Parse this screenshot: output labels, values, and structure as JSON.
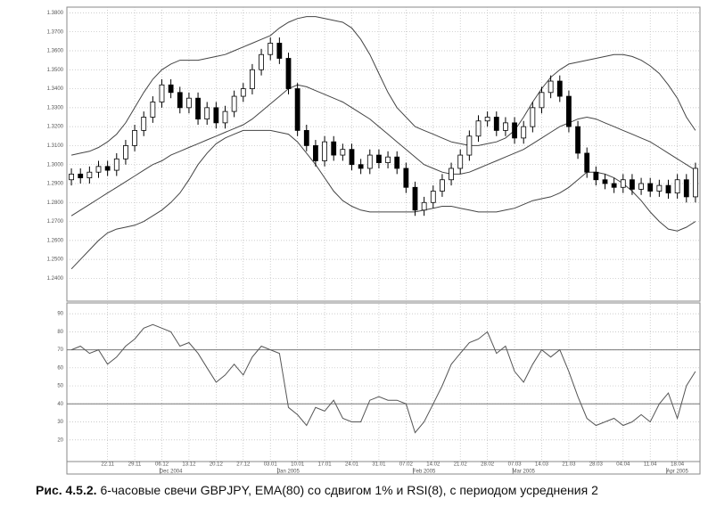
{
  "chart_data": [
    {
      "type": "candlestick",
      "categories": [
        null,
        null,
        null,
        null,
        "22.11",
        null,
        null,
        "29.11",
        null,
        null,
        "06.12",
        null,
        null,
        "13.12",
        null,
        null,
        "20.12",
        null,
        null,
        "27.12",
        null,
        null,
        "03.01",
        null,
        null,
        "10.01",
        null,
        null,
        "17.01",
        null,
        null,
        "24.01",
        null,
        null,
        "31.01",
        null,
        null,
        "07.02",
        null,
        null,
        "14.02",
        null,
        null,
        "21.02",
        null,
        null,
        "28.02",
        null,
        null,
        "07.03",
        null,
        null,
        "14.03",
        null,
        null,
        "21.03",
        null,
        null,
        "28.03",
        null,
        null,
        "04.04",
        null,
        null,
        "11.04",
        null,
        null,
        "18.04",
        null,
        null
      ],
      "x2ticks": [
        {
          "value": 11,
          "label": "Dec 2004"
        },
        {
          "value": 24,
          "label": "Jan 2005"
        },
        {
          "value": 39,
          "label": "Feb 2005"
        },
        {
          "value": 50,
          "label": "Mar 2005"
        },
        {
          "value": 67,
          "label": "Apr 2005"
        }
      ],
      "open": [
        1.292,
        1.295,
        1.293,
        1.296,
        1.299,
        1.297,
        1.303,
        1.31,
        1.318,
        1.325,
        1.333,
        1.342,
        1.338,
        1.33,
        1.335,
        1.324,
        1.33,
        1.322,
        1.328,
        1.336,
        1.34,
        1.35,
        1.358,
        1.364,
        1.356,
        1.34,
        1.318,
        1.31,
        1.302,
        1.312,
        1.305,
        1.308,
        1.3,
        1.298,
        1.305,
        1.301,
        1.304,
        1.298,
        1.288,
        1.276,
        1.28,
        1.286,
        1.292,
        1.298,
        1.305,
        1.315,
        1.323,
        1.325,
        1.318,
        1.322,
        1.314,
        1.32,
        1.33,
        1.338,
        1.344,
        1.336,
        1.32,
        1.306,
        1.296,
        1.292,
        1.29,
        1.288,
        1.292,
        1.287,
        1.29,
        1.286,
        1.289,
        1.285,
        1.292,
        1.283
      ],
      "high": [
        1.298,
        1.298,
        1.299,
        1.302,
        1.302,
        1.306,
        1.313,
        1.321,
        1.328,
        1.336,
        1.345,
        1.345,
        1.341,
        1.338,
        1.338,
        1.333,
        1.333,
        1.331,
        1.339,
        1.343,
        1.353,
        1.361,
        1.367,
        1.367,
        1.359,
        1.343,
        1.321,
        1.313,
        1.315,
        1.315,
        1.311,
        1.311,
        1.303,
        1.308,
        1.308,
        1.307,
        1.307,
        1.301,
        1.291,
        1.283,
        1.289,
        1.295,
        1.301,
        1.308,
        1.318,
        1.326,
        1.328,
        1.328,
        1.325,
        1.325,
        1.323,
        1.333,
        1.341,
        1.347,
        1.347,
        1.339,
        1.323,
        1.309,
        1.299,
        1.295,
        1.293,
        1.295,
        1.295,
        1.293,
        1.293,
        1.292,
        1.292,
        1.295,
        1.295,
        1.301
      ],
      "low": [
        1.289,
        1.29,
        1.29,
        1.293,
        1.294,
        1.294,
        1.3,
        1.307,
        1.315,
        1.322,
        1.33,
        1.335,
        1.327,
        1.327,
        1.321,
        1.321,
        1.319,
        1.319,
        1.325,
        1.333,
        1.337,
        1.347,
        1.355,
        1.353,
        1.337,
        1.315,
        1.307,
        1.299,
        1.299,
        1.302,
        1.302,
        1.297,
        1.295,
        1.295,
        1.298,
        1.298,
        1.295,
        1.285,
        1.273,
        1.273,
        1.277,
        1.283,
        1.289,
        1.295,
        1.302,
        1.312,
        1.32,
        1.315,
        1.315,
        1.311,
        1.311,
        1.317,
        1.327,
        1.335,
        1.333,
        1.317,
        1.303,
        1.293,
        1.289,
        1.287,
        1.285,
        1.285,
        1.284,
        1.284,
        1.283,
        1.283,
        1.282,
        1.282,
        1.28,
        1.28
      ],
      "close": [
        1.295,
        1.293,
        1.296,
        1.299,
        1.297,
        1.303,
        1.31,
        1.318,
        1.325,
        1.333,
        1.342,
        1.338,
        1.33,
        1.335,
        1.324,
        1.33,
        1.322,
        1.328,
        1.336,
        1.34,
        1.35,
        1.358,
        1.364,
        1.356,
        1.34,
        1.318,
        1.31,
        1.302,
        1.312,
        1.305,
        1.308,
        1.3,
        1.298,
        1.305,
        1.301,
        1.304,
        1.298,
        1.288,
        1.276,
        1.28,
        1.286,
        1.292,
        1.298,
        1.305,
        1.315,
        1.323,
        1.325,
        1.318,
        1.322,
        1.314,
        1.32,
        1.33,
        1.338,
        1.344,
        1.336,
        1.32,
        1.306,
        1.296,
        1.292,
        1.29,
        1.288,
        1.292,
        1.287,
        1.29,
        1.286,
        1.289,
        1.285,
        1.292,
        1.283,
        1.298
      ],
      "series": [
        {
          "color": "#444444",
          "values": [
            1.305,
            1.306,
            1.307,
            1.309,
            1.312,
            1.316,
            1.322,
            1.33,
            1.338,
            1.345,
            1.35,
            1.353,
            1.355,
            1.355,
            1.355,
            1.356,
            1.357,
            1.358,
            1.36,
            1.362,
            1.364,
            1.366,
            1.368,
            1.372,
            1.375,
            1.377,
            1.378,
            1.378,
            1.377,
            1.376,
            1.375,
            1.372,
            1.366,
            1.358,
            1.348,
            1.338,
            1.33,
            1.325,
            1.32,
            1.318,
            1.316,
            1.314,
            1.312,
            1.311,
            1.31,
            1.31,
            1.311,
            1.312,
            1.314,
            1.318,
            1.325,
            1.333,
            1.34,
            1.346,
            1.35,
            1.353,
            1.354,
            1.355,
            1.356,
            1.357,
            1.358,
            1.358,
            1.357,
            1.355,
            1.352,
            1.348,
            1.342,
            1.335,
            1.325,
            1.318
          ]
        },
        {
          "color": "#444444",
          "values": [
            1.273,
            1.276,
            1.279,
            1.282,
            1.285,
            1.288,
            1.291,
            1.294,
            1.297,
            1.3,
            1.302,
            1.305,
            1.307,
            1.309,
            1.311,
            1.313,
            1.315,
            1.317,
            1.319,
            1.321,
            1.324,
            1.328,
            1.332,
            1.336,
            1.34,
            1.342,
            1.341,
            1.339,
            1.337,
            1.335,
            1.333,
            1.33,
            1.327,
            1.324,
            1.32,
            1.316,
            1.312,
            1.308,
            1.304,
            1.3,
            1.298,
            1.296,
            1.295,
            1.295,
            1.296,
            1.298,
            1.3,
            1.302,
            1.304,
            1.306,
            1.308,
            1.311,
            1.314,
            1.317,
            1.32,
            1.322,
            1.324,
            1.325,
            1.324,
            1.322,
            1.32,
            1.318,
            1.316,
            1.314,
            1.312,
            1.309,
            1.306,
            1.303,
            1.3,
            1.297
          ]
        },
        {
          "color": "#444444",
          "values": [
            1.245,
            1.25,
            1.255,
            1.26,
            1.264,
            1.266,
            1.267,
            1.268,
            1.27,
            1.273,
            1.276,
            1.28,
            1.285,
            1.292,
            1.3,
            1.306,
            1.311,
            1.314,
            1.316,
            1.318,
            1.318,
            1.318,
            1.318,
            1.317,
            1.316,
            1.312,
            1.306,
            1.3,
            1.293,
            1.286,
            1.281,
            1.278,
            1.276,
            1.275,
            1.275,
            1.275,
            1.275,
            1.275,
            1.275,
            1.276,
            1.277,
            1.278,
            1.278,
            1.277,
            1.276,
            1.275,
            1.275,
            1.275,
            1.276,
            1.277,
            1.279,
            1.281,
            1.282,
            1.283,
            1.285,
            1.288,
            1.292,
            1.296,
            1.296,
            1.295,
            1.293,
            1.29,
            1.286,
            1.281,
            1.275,
            1.27,
            1.266,
            1.265,
            1.267,
            1.27
          ]
        }
      ],
      "ylim": [
        1.228,
        1.383
      ],
      "yticks": [
        {
          "value": 1.38,
          "label": "1.3800"
        },
        {
          "value": 1.37,
          "label": "1.3700"
        },
        {
          "value": 1.36,
          "label": "1.3600"
        },
        {
          "value": 1.35,
          "label": "1.3500"
        },
        {
          "value": 1.34,
          "label": "1.3400"
        },
        {
          "value": 1.33,
          "label": "1.3300"
        },
        {
          "value": 1.32,
          "label": "1.3200"
        },
        {
          "value": 1.31,
          "label": "1.3100"
        },
        {
          "value": 1.3,
          "label": "1.3000"
        },
        {
          "value": 1.29,
          "label": "1.2900"
        },
        {
          "value": 1.28,
          "label": "1.2800"
        },
        {
          "value": 1.27,
          "label": "1.2700"
        },
        {
          "value": 1.26,
          "label": "1.2600"
        },
        {
          "value": 1.25,
          "label": "1.2500"
        },
        {
          "value": 1.24,
          "label": "1.2400"
        }
      ],
      "grid": true,
      "up_color": "#ffffff",
      "down_color": "#000000"
    },
    {
      "type": "line",
      "color": "#555555",
      "values": [
        70,
        72,
        68,
        70,
        62,
        66,
        72,
        76,
        82,
        84,
        82,
        80,
        72,
        74,
        68,
        60,
        52,
        56,
        62,
        56,
        66,
        72,
        70,
        68,
        38,
        34,
        28,
        38,
        36,
        42,
        32,
        30,
        30,
        42,
        44,
        42,
        42,
        40,
        24,
        30,
        40,
        50,
        62,
        68,
        74,
        76,
        80,
        68,
        72,
        58,
        52,
        62,
        70,
        66,
        70,
        58,
        44,
        32,
        28,
        30,
        32,
        28,
        30,
        34,
        30,
        40,
        46,
        32,
        50,
        58
      ],
      "ylim": [
        8,
        96
      ],
      "yticks": [
        90,
        80,
        70,
        60,
        50,
        40,
        30,
        20
      ],
      "levels": [
        70,
        40
      ],
      "grid": true
    }
  ],
  "caption_label": "Рис. 4.5.2.",
  "caption": "6-часовые свечи GBPJPY, EMA(80) со сдвигом 1% и RSI(8), с периодом усреднения 2"
}
